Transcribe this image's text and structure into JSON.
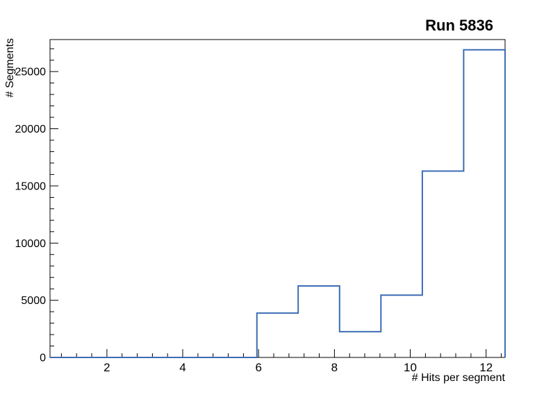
{
  "title": "Run 5836",
  "chart_data": {
    "type": "bar",
    "subtype": "step-histogram",
    "title": "Run 5836",
    "xlabel": "# Hits per segment",
    "ylabel": "# Segments",
    "xlim": [
      0.5,
      12.5
    ],
    "ylim": [
      0,
      27800
    ],
    "bin_edges": [
      0.5,
      1.591,
      2.682,
      3.773,
      4.864,
      5.955,
      7.045,
      8.136,
      9.227,
      10.318,
      11.409,
      12.5
    ],
    "values": [
      0,
      0,
      0,
      0,
      0,
      3880,
      6250,
      2250,
      5450,
      16300,
      26900
    ],
    "x_major_ticks": [
      2,
      4,
      6,
      8,
      10,
      12
    ],
    "x_minor_step": 0.4,
    "y_major_ticks": [
      0,
      5000,
      10000,
      15000,
      20000,
      25000
    ],
    "y_minor_step": 1000,
    "grid": false,
    "legend": null,
    "line_color": "#3b6cb4",
    "frame_color": "#000000",
    "background": "#ffffff"
  }
}
